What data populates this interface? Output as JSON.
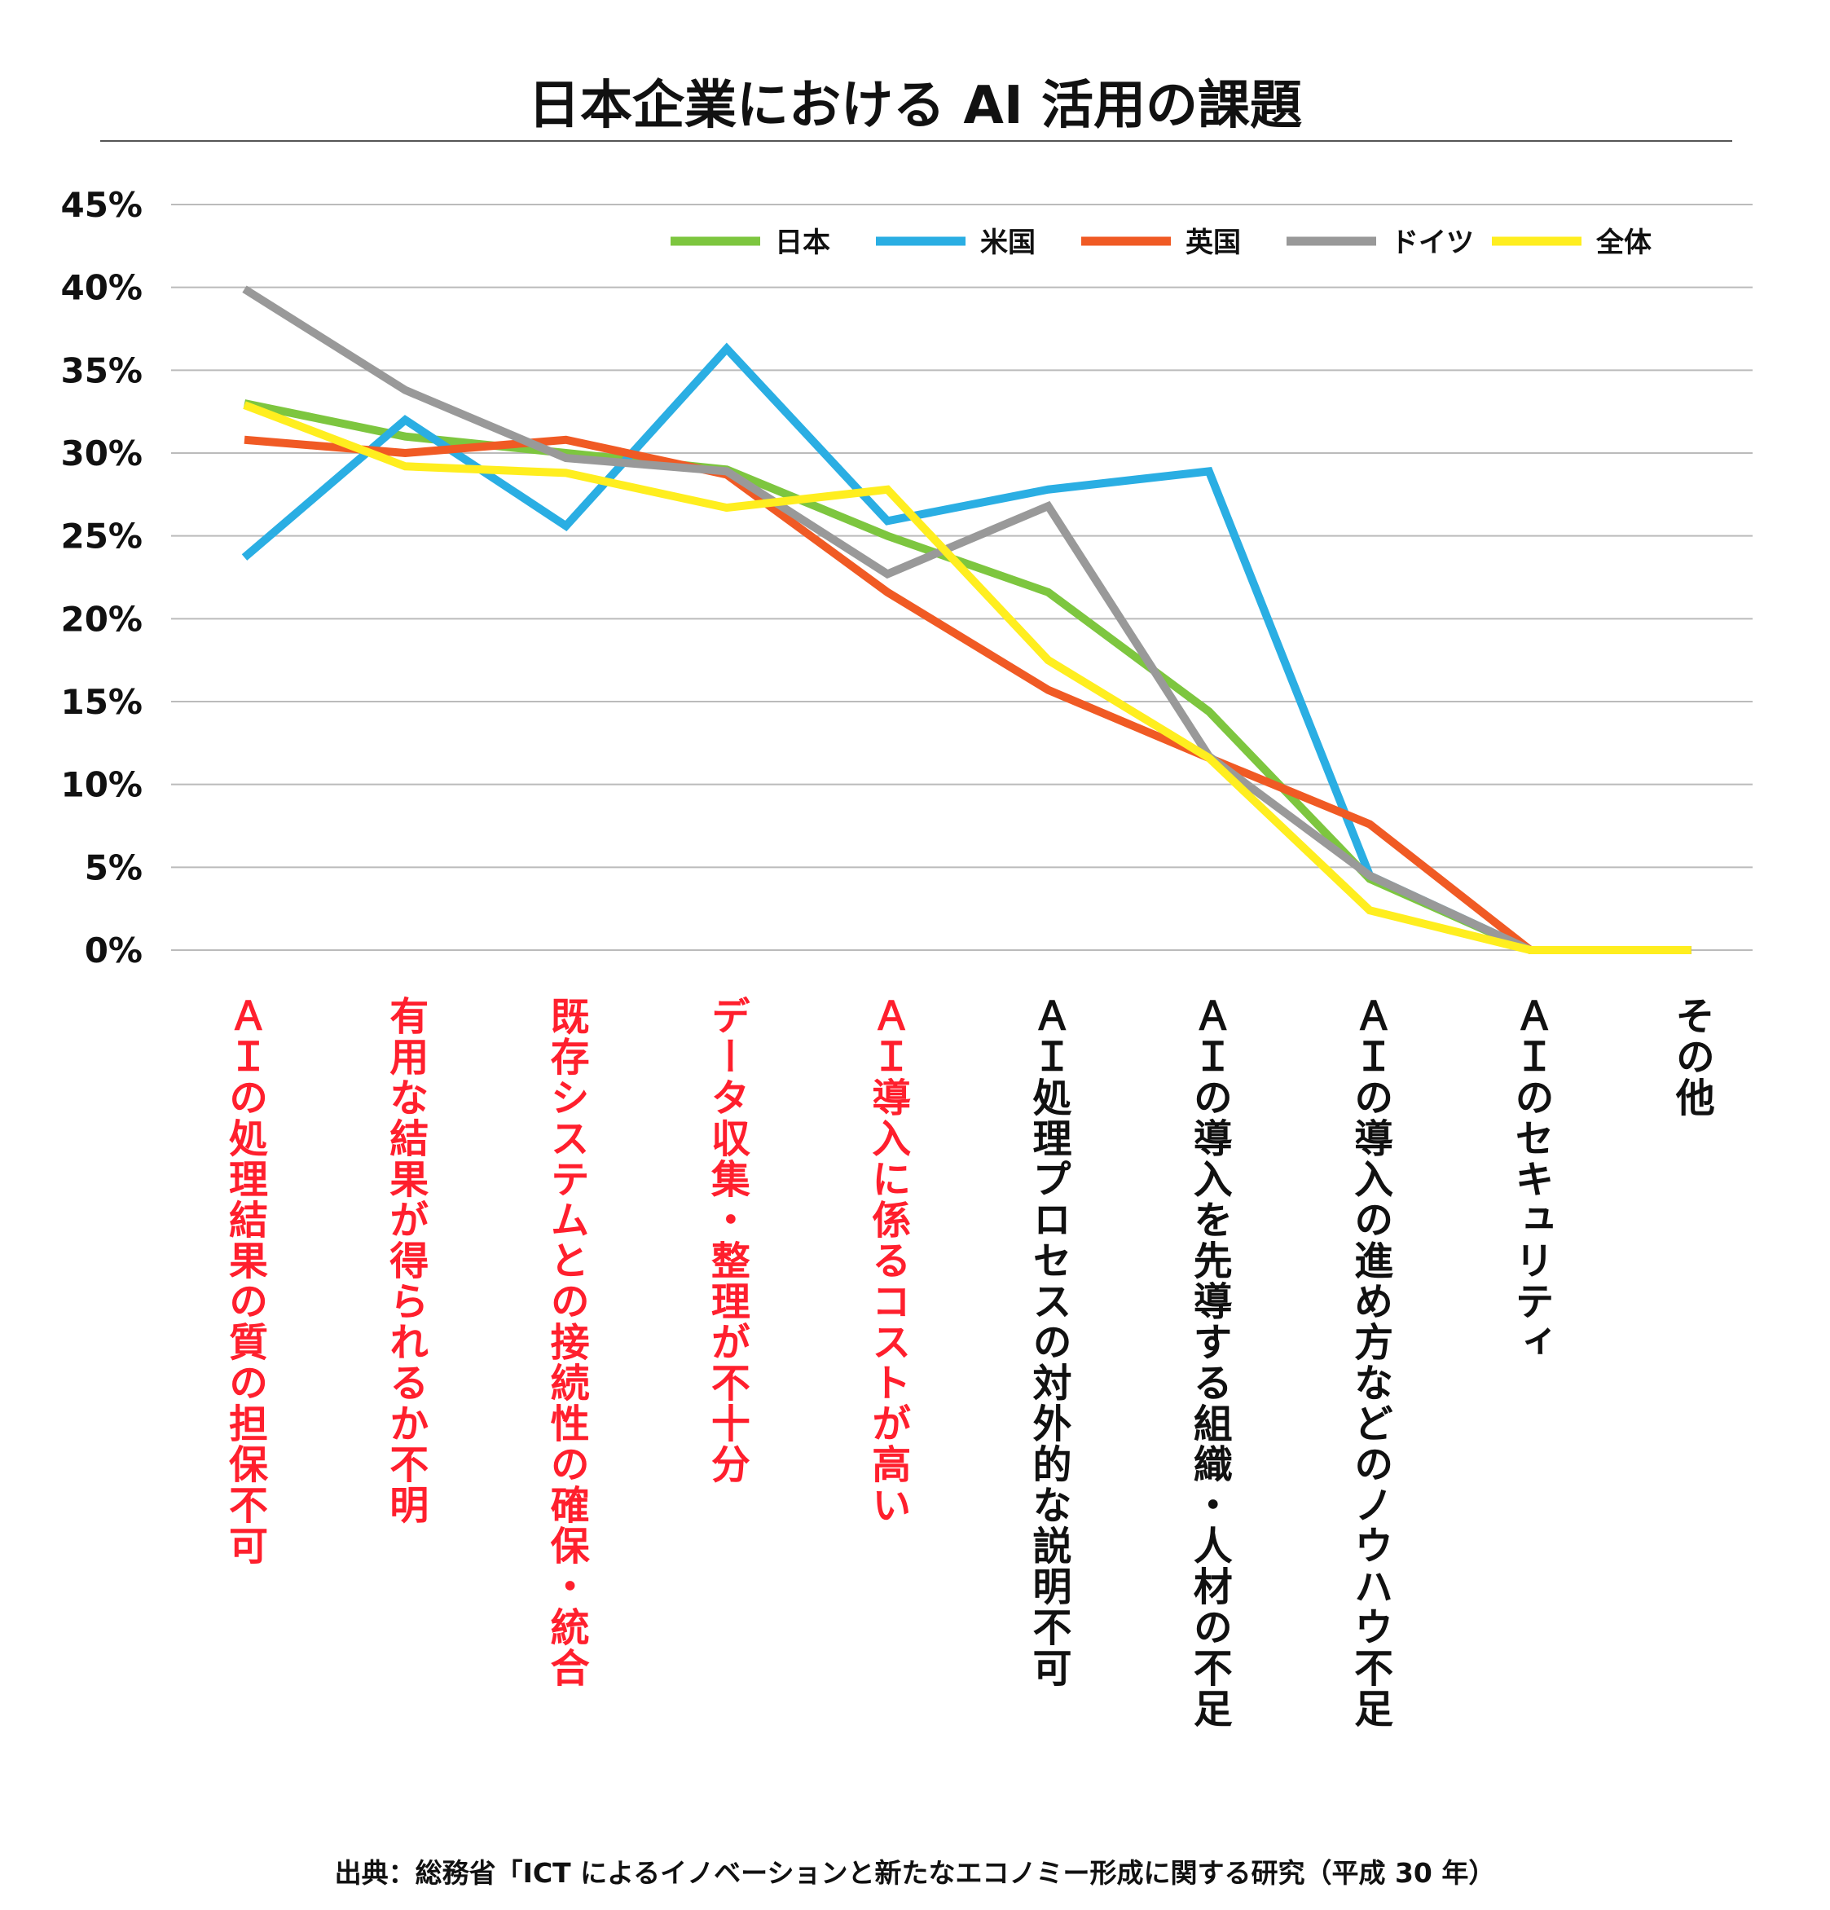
{
  "chart_data": {
    "type": "line",
    "title": "日本企業における AI 活用の課題",
    "source": "出典：総務省「ICT によるイノベーションと新たなエコノミー形成に関する研究（平成 30 年）",
    "ylim": [
      0,
      45
    ],
    "yticks": [
      "0%",
      "5%",
      "10%",
      "15%",
      "20%",
      "25%",
      "30%",
      "35%",
      "40%",
      "45%"
    ],
    "grid": true,
    "legend_position": "top-right",
    "categories": [
      "ＡＩの処理結果の質の担保不可",
      "有用な結果が得られるか不明",
      "既存システムとの接続性の確保・統合",
      "データ収集・整理が不十分",
      "ＡＩ導入に係るコストが高い",
      "ＡＩ処理プロセスの対外的な説明不可",
      "ＡＩの導入を先導する組織・人材の不足",
      "ＡＩの導入の進め方などのノウハウ不足",
      "ＡＩのセキュリティ",
      "その他"
    ],
    "highlighted_categories": [
      0,
      1,
      2,
      3,
      4
    ],
    "highlight_color": "#ff1f2d",
    "series": [
      {
        "name": "日本",
        "color": "#7dc63f",
        "values": [
          33.0,
          31.0,
          30.0,
          29.0,
          25.0,
          21.6,
          14.4,
          4.3,
          0,
          0
        ]
      },
      {
        "name": "米国",
        "color": "#2aaee3",
        "values": [
          23.7,
          32.0,
          25.6,
          36.3,
          25.9,
          27.8,
          28.9,
          4.5,
          0,
          0
        ]
      },
      {
        "name": "英国",
        "color": "#f05a24",
        "values": [
          30.8,
          30.0,
          30.8,
          28.7,
          21.6,
          15.7,
          11.6,
          7.6,
          0,
          0
        ]
      },
      {
        "name": "ドイツ",
        "color": "#999999",
        "values": [
          39.9,
          33.8,
          29.7,
          28.9,
          22.7,
          26.8,
          11.7,
          4.5,
          0,
          0
        ]
      },
      {
        "name": "全体",
        "color": "#ffee1f",
        "values": [
          32.9,
          29.2,
          28.8,
          26.7,
          27.8,
          17.5,
          11.6,
          2.4,
          0,
          0
        ]
      }
    ]
  }
}
